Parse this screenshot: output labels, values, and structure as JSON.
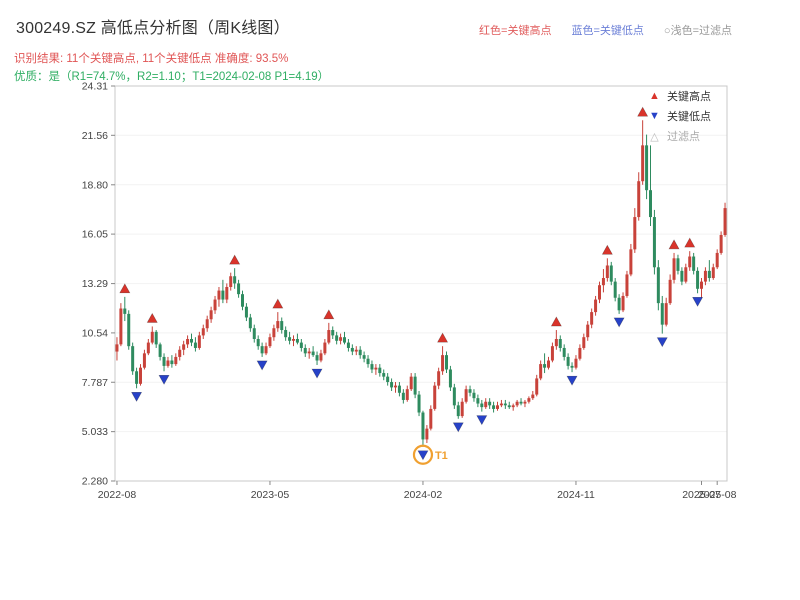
{
  "header": {
    "title": "300249.SZ 高低点分析图（周K线图）",
    "legend_top": [
      {
        "label": "红色=关键高点",
        "color": "#e05c5c"
      },
      {
        "label": "蓝色=关键低点",
        "color": "#6b7fd7"
      },
      {
        "label": "○浅色=过滤点",
        "color": "#999999"
      }
    ],
    "result_line": "识别结果: 11个关键高点, 11个关键低点  准确度: 93.5%",
    "result_color": "#e05555",
    "quality_line": "优质：是（R1=74.7%，R2=1.10；T1=2024-02-08 P1=4.19）",
    "quality_color": "#2fae63"
  },
  "chart_data": {
    "type": "candlestick",
    "symbol": "300249.SZ",
    "period": "weekly",
    "title": "300249.SZ 高低点分析图（周K线图）",
    "ylim": [
      2.28,
      24.31
    ],
    "y_ticks": [
      {
        "label": "24.31",
        "value": 24.31
      },
      {
        "label": "21.56",
        "value": 21.56
      },
      {
        "label": "18.80",
        "value": 18.8
      },
      {
        "label": "16.05",
        "value": 16.05
      },
      {
        "label": "13.29",
        "value": 13.29
      },
      {
        "label": "10.54",
        "value": 10.54
      },
      {
        "label": "7.787",
        "value": 7.787
      },
      {
        "label": "5.033",
        "value": 5.033
      },
      {
        "label": "2.280",
        "value": 2.28
      }
    ],
    "x_ticks": [
      {
        "label": "2022-08",
        "week": 0
      },
      {
        "label": "2023-05",
        "week": 39
      },
      {
        "label": "2024-02",
        "week": 78
      },
      {
        "label": "2024-11",
        "week": 117
      },
      {
        "label": "2025-07",
        "week": 149
      },
      {
        "label": "2025-08",
        "week": 153
      }
    ],
    "candles": [
      [
        9.5,
        10.3,
        9.0,
        9.9
      ],
      [
        9.9,
        12.2,
        9.8,
        11.9
      ],
      [
        11.9,
        12.55,
        11.2,
        11.6
      ],
      [
        11.6,
        11.8,
        9.6,
        9.8
      ],
      [
        9.8,
        10.0,
        8.2,
        8.4
      ],
      [
        8.4,
        8.6,
        7.45,
        7.7
      ],
      [
        7.7,
        8.8,
        7.6,
        8.6
      ],
      [
        8.6,
        9.6,
        8.5,
        9.4
      ],
      [
        9.4,
        10.2,
        9.3,
        10.0
      ],
      [
        10.0,
        10.9,
        9.9,
        10.6
      ],
      [
        10.6,
        10.7,
        9.7,
        9.9
      ],
      [
        9.9,
        10.0,
        9.0,
        9.2
      ],
      [
        9.2,
        9.4,
        8.4,
        8.7
      ],
      [
        8.7,
        9.2,
        8.6,
        9.0
      ],
      [
        9.0,
        9.3,
        8.6,
        8.8
      ],
      [
        8.8,
        9.4,
        8.7,
        9.2
      ],
      [
        9.2,
        9.8,
        9.0,
        9.6
      ],
      [
        9.6,
        10.1,
        9.3,
        9.9
      ],
      [
        9.9,
        10.4,
        9.7,
        10.2
      ],
      [
        10.2,
        10.5,
        9.8,
        10.0
      ],
      [
        10.0,
        10.3,
        9.5,
        9.7
      ],
      [
        9.7,
        10.6,
        9.6,
        10.4
      ],
      [
        10.4,
        11.0,
        10.2,
        10.8
      ],
      [
        10.8,
        11.5,
        10.6,
        11.3
      ],
      [
        11.3,
        12.0,
        11.1,
        11.8
      ],
      [
        11.8,
        12.6,
        11.6,
        12.4
      ],
      [
        12.4,
        13.1,
        12.0,
        12.9
      ],
      [
        12.9,
        13.5,
        12.2,
        12.4
      ],
      [
        12.4,
        13.3,
        12.2,
        13.1
      ],
      [
        13.1,
        13.9,
        12.9,
        13.7
      ],
      [
        13.7,
        14.15,
        13.0,
        13.3
      ],
      [
        13.3,
        13.5,
        12.5,
        12.7
      ],
      [
        12.7,
        12.9,
        11.8,
        12.0
      ],
      [
        12.0,
        12.2,
        11.2,
        11.4
      ],
      [
        11.4,
        11.6,
        10.6,
        10.8
      ],
      [
        10.8,
        11.0,
        10.0,
        10.2
      ],
      [
        10.2,
        10.4,
        9.6,
        9.8
      ],
      [
        9.8,
        10.0,
        9.2,
        9.4
      ],
      [
        9.4,
        10.0,
        9.3,
        9.8
      ],
      [
        9.8,
        10.5,
        9.7,
        10.3
      ],
      [
        10.3,
        11.0,
        10.1,
        10.8
      ],
      [
        10.8,
        11.7,
        10.6,
        11.2
      ],
      [
        11.2,
        11.4,
        10.5,
        10.7
      ],
      [
        10.7,
        10.9,
        10.1,
        10.3
      ],
      [
        10.3,
        10.6,
        9.9,
        10.1
      ],
      [
        10.1,
        10.4,
        9.8,
        10.2
      ],
      [
        10.2,
        10.5,
        9.9,
        10.0
      ],
      [
        10.0,
        10.2,
        9.5,
        9.7
      ],
      [
        9.7,
        9.9,
        9.2,
        9.4
      ],
      [
        9.4,
        9.7,
        9.1,
        9.5
      ],
      [
        9.5,
        9.8,
        9.2,
        9.3
      ],
      [
        9.3,
        9.5,
        8.75,
        9.0
      ],
      [
        9.0,
        9.6,
        8.9,
        9.4
      ],
      [
        9.4,
        10.2,
        9.3,
        10.0
      ],
      [
        10.0,
        11.1,
        9.9,
        10.7
      ],
      [
        10.7,
        10.9,
        10.2,
        10.4
      ],
      [
        10.4,
        10.6,
        9.9,
        10.1
      ],
      [
        10.1,
        10.5,
        9.9,
        10.3
      ],
      [
        10.3,
        10.6,
        9.9,
        10.0
      ],
      [
        10.0,
        10.2,
        9.5,
        9.7
      ],
      [
        9.7,
        9.9,
        9.3,
        9.5
      ],
      [
        9.5,
        9.8,
        9.3,
        9.6
      ],
      [
        9.6,
        9.8,
        9.1,
        9.3
      ],
      [
        9.3,
        9.5,
        8.9,
        9.1
      ],
      [
        9.1,
        9.3,
        8.6,
        8.8
      ],
      [
        8.8,
        9.0,
        8.3,
        8.5
      ],
      [
        8.5,
        8.8,
        8.2,
        8.6
      ],
      [
        8.6,
        8.8,
        8.1,
        8.3
      ],
      [
        8.3,
        8.5,
        7.9,
        8.1
      ],
      [
        8.1,
        8.3,
        7.6,
        7.8
      ],
      [
        7.8,
        8.0,
        7.3,
        7.5
      ],
      [
        7.5,
        7.8,
        7.2,
        7.6
      ],
      [
        7.6,
        7.8,
        7.0,
        7.2
      ],
      [
        7.2,
        7.4,
        6.6,
        6.8
      ],
      [
        6.8,
        7.6,
        6.7,
        7.4
      ],
      [
        7.4,
        8.3,
        7.3,
        8.1
      ],
      [
        8.1,
        8.3,
        6.9,
        7.1
      ],
      [
        7.1,
        7.3,
        5.9,
        6.1
      ],
      [
        6.1,
        6.2,
        4.19,
        4.6
      ],
      [
        4.6,
        5.4,
        4.4,
        5.2
      ],
      [
        5.2,
        6.5,
        5.1,
        6.3
      ],
      [
        6.3,
        7.8,
        6.2,
        7.6
      ],
      [
        7.6,
        8.6,
        7.4,
        8.4
      ],
      [
        8.4,
        9.8,
        8.2,
        9.3
      ],
      [
        9.3,
        9.5,
        8.3,
        8.5
      ],
      [
        8.5,
        8.7,
        7.3,
        7.5
      ],
      [
        7.5,
        7.7,
        6.3,
        6.5
      ],
      [
        6.5,
        6.7,
        5.75,
        5.9
      ],
      [
        5.9,
        6.9,
        5.8,
        6.7
      ],
      [
        6.7,
        7.6,
        6.6,
        7.4
      ],
      [
        7.4,
        7.6,
        7.0,
        7.2
      ],
      [
        7.2,
        7.4,
        6.7,
        6.9
      ],
      [
        6.9,
        7.1,
        6.4,
        6.6
      ],
      [
        6.6,
        6.8,
        6.15,
        6.4
      ],
      [
        6.4,
        6.9,
        6.3,
        6.7
      ],
      [
        6.7,
        6.9,
        6.3,
        6.5
      ],
      [
        6.5,
        6.7,
        6.1,
        6.3
      ],
      [
        6.3,
        6.7,
        6.2,
        6.5
      ],
      [
        6.5,
        6.8,
        6.4,
        6.6
      ],
      [
        6.6,
        6.8,
        6.3,
        6.5
      ],
      [
        6.5,
        6.7,
        6.3,
        6.4
      ],
      [
        6.4,
        6.6,
        6.2,
        6.5
      ],
      [
        6.5,
        6.8,
        6.4,
        6.7
      ],
      [
        6.7,
        6.9,
        6.5,
        6.6
      ],
      [
        6.6,
        6.8,
        6.4,
        6.7
      ],
      [
        6.7,
        7.0,
        6.6,
        6.9
      ],
      [
        6.9,
        7.3,
        6.8,
        7.1
      ],
      [
        7.1,
        8.2,
        7.0,
        8.0
      ],
      [
        8.0,
        9.0,
        7.9,
        8.8
      ],
      [
        8.8,
        9.4,
        8.3,
        8.6
      ],
      [
        8.6,
        9.2,
        8.5,
        9.0
      ],
      [
        9.0,
        10.0,
        8.9,
        9.8
      ],
      [
        9.8,
        10.7,
        9.6,
        10.2
      ],
      [
        10.2,
        10.4,
        9.5,
        9.7
      ],
      [
        9.7,
        9.9,
        9.0,
        9.2
      ],
      [
        9.2,
        9.4,
        8.5,
        8.7
      ],
      [
        8.7,
        8.9,
        8.35,
        8.6
      ],
      [
        8.6,
        9.3,
        8.5,
        9.1
      ],
      [
        9.1,
        9.9,
        9.0,
        9.7
      ],
      [
        9.7,
        10.5,
        9.6,
        10.3
      ],
      [
        10.3,
        11.2,
        10.1,
        11.0
      ],
      [
        11.0,
        11.9,
        10.8,
        11.7
      ],
      [
        11.7,
        12.6,
        11.5,
        12.4
      ],
      [
        12.4,
        13.4,
        12.2,
        13.2
      ],
      [
        13.2,
        14.1,
        12.8,
        13.6
      ],
      [
        13.6,
        14.7,
        13.4,
        14.3
      ],
      [
        14.3,
        14.5,
        13.2,
        13.4
      ],
      [
        13.4,
        13.6,
        12.3,
        12.5
      ],
      [
        12.5,
        12.7,
        11.6,
        11.8
      ],
      [
        11.8,
        12.8,
        11.7,
        12.6
      ],
      [
        12.6,
        14.0,
        12.5,
        13.8
      ],
      [
        13.8,
        15.5,
        13.7,
        15.2
      ],
      [
        15.2,
        17.5,
        15.0,
        17.0
      ],
      [
        17.0,
        19.5,
        16.8,
        19.0
      ],
      [
        19.0,
        22.4,
        18.8,
        21.0
      ],
      [
        21.0,
        21.6,
        18.0,
        18.5
      ],
      [
        18.5,
        21.0,
        16.5,
        17.0
      ],
      [
        17.0,
        17.4,
        13.8,
        14.2
      ],
      [
        14.2,
        14.6,
        11.8,
        12.2
      ],
      [
        12.2,
        12.6,
        10.5,
        11.0
      ],
      [
        11.0,
        12.5,
        10.9,
        12.2
      ],
      [
        12.2,
        13.8,
        12.1,
        13.5
      ],
      [
        13.5,
        15.0,
        13.3,
        14.7
      ],
      [
        14.7,
        14.9,
        13.8,
        14.0
      ],
      [
        14.0,
        14.2,
        13.2,
        13.4
      ],
      [
        13.4,
        14.4,
        13.3,
        14.2
      ],
      [
        14.2,
        15.1,
        14.0,
        14.8
      ],
      [
        14.8,
        15.0,
        13.8,
        14.0
      ],
      [
        14.0,
        14.2,
        12.75,
        13.0
      ],
      [
        13.0,
        13.6,
        12.5,
        13.4
      ],
      [
        13.4,
        14.2,
        13.2,
        14.0
      ],
      [
        14.0,
        14.6,
        13.4,
        13.6
      ],
      [
        13.6,
        14.4,
        13.5,
        14.2
      ],
      [
        14.2,
        15.2,
        14.1,
        15.0
      ],
      [
        15.0,
        16.2,
        14.9,
        16.0
      ],
      [
        16.0,
        17.8,
        15.9,
        17.5
      ]
    ],
    "key_highs": [
      {
        "week": 2,
        "price": 12.55
      },
      {
        "week": 9,
        "price": 10.9
      },
      {
        "week": 30,
        "price": 14.15
      },
      {
        "week": 41,
        "price": 11.7
      },
      {
        "week": 54,
        "price": 11.1
      },
      {
        "week": 83,
        "price": 9.8
      },
      {
        "week": 112,
        "price": 10.7
      },
      {
        "week": 125,
        "price": 14.7
      },
      {
        "week": 134,
        "price": 22.4
      },
      {
        "week": 142,
        "price": 15.0
      },
      {
        "week": 146,
        "price": 15.1
      }
    ],
    "key_lows": [
      {
        "week": 5,
        "price": 7.45
      },
      {
        "week": 12,
        "price": 8.4
      },
      {
        "week": 37,
        "price": 9.2
      },
      {
        "week": 51,
        "price": 8.75
      },
      {
        "week": 78,
        "price": 4.19
      },
      {
        "week": 87,
        "price": 5.75
      },
      {
        "week": 93,
        "price": 6.15
      },
      {
        "week": 116,
        "price": 8.35
      },
      {
        "week": 128,
        "price": 11.6
      },
      {
        "week": 139,
        "price": 10.5
      },
      {
        "week": 148,
        "price": 12.75
      }
    ],
    "t1_marker": {
      "week": 78,
      "price": 4.19,
      "label": "T1"
    },
    "inner_legend": [
      {
        "glyph": "▲",
        "color": "#d9342b",
        "label": "关键高点",
        "muted": false
      },
      {
        "glyph": "▼",
        "color": "#2742c8",
        "label": "关键低点",
        "muted": false
      },
      {
        "glyph": "△",
        "color": "#bbbbbb",
        "label": "过滤点",
        "muted": true
      }
    ],
    "colors": {
      "up": "#c8423a",
      "down": "#2e8b5f",
      "high_marker": "#d9342b",
      "low_marker": "#2742c8",
      "t1": "#f0a030",
      "grid": "#f2f2f2",
      "axis": "#c8c8c8"
    }
  }
}
